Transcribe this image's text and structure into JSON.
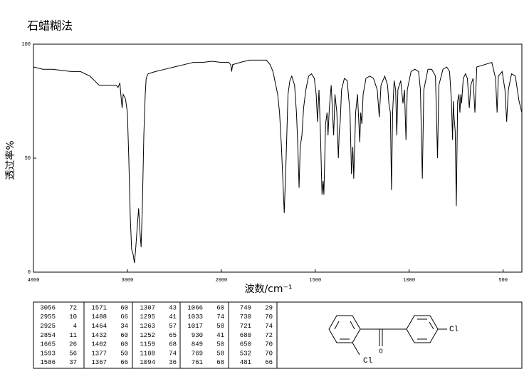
{
  "chart_data": {
    "type": "line",
    "title": "石蜡糊法",
    "xlabel": "波数/cm⁻¹",
    "ylabel": "透过率%",
    "xlim": [
      4000,
      400
    ],
    "xbreak": 2000,
    "ylim": [
      0,
      100
    ],
    "xticks": [
      4000,
      3000,
      2000,
      1500,
      1000,
      500
    ],
    "yticks": [
      0,
      50,
      100
    ],
    "x": [
      4000,
      3900,
      3800,
      3700,
      3600,
      3500,
      3400,
      3350,
      3300,
      3200,
      3120,
      3100,
      3080,
      3070,
      3056,
      3045,
      3020,
      3000,
      2985,
      2970,
      2955,
      2940,
      2925,
      2912,
      2895,
      2880,
      2870,
      2854,
      2840,
      2825,
      2810,
      2800,
      2780,
      2700,
      2600,
      2500,
      2400,
      2300,
      2200,
      2100,
      2000,
      1960,
      1950,
      1945,
      1940,
      1900,
      1850,
      1800,
      1760,
      1740,
      1725,
      1710,
      1700,
      1690,
      1680,
      1665,
      1655,
      1645,
      1635,
      1625,
      1610,
      1600,
      1593,
      1586,
      1580,
      1571,
      1562,
      1550,
      1535,
      1520,
      1505,
      1495,
      1488,
      1480,
      1472,
      1464,
      1458,
      1454,
      1445,
      1437,
      1432,
      1425,
      1415,
      1408,
      1402,
      1395,
      1385,
      1377,
      1372,
      1367,
      1360,
      1345,
      1330,
      1315,
      1307,
      1300,
      1295,
      1285,
      1275,
      1263,
      1258,
      1252,
      1245,
      1230,
      1210,
      1190,
      1170,
      1159,
      1150,
      1130,
      1115,
      1108,
      1100,
      1094,
      1088,
      1080,
      1072,
      1066,
      1060,
      1045,
      1033,
      1025,
      1017,
      1010,
      990,
      970,
      950,
      940,
      930,
      922,
      900,
      880,
      860,
      849,
      842,
      820,
      800,
      785,
      775,
      769,
      765,
      761,
      755,
      749,
      742,
      735,
      730,
      725,
      721,
      712,
      700,
      690,
      680,
      672,
      660,
      650,
      640,
      600,
      560,
      540,
      532,
      525,
      505,
      490,
      481,
      472,
      455,
      435,
      415,
      400
    ],
    "series": [
      {
        "color": "#000000",
        "values": [
          90,
          89,
          89,
          88.5,
          88,
          88,
          86,
          84,
          82,
          82,
          82,
          81,
          83,
          78,
          72,
          78,
          76,
          70,
          50,
          25,
          10,
          8,
          4,
          10,
          20,
          28,
          20,
          11,
          30,
          60,
          78,
          85,
          87,
          88,
          89,
          90,
          91,
          92,
          92,
          92.5,
          92,
          92,
          91,
          88,
          91,
          92,
          93,
          93,
          93,
          91,
          88,
          82,
          78,
          70,
          55,
          26,
          50,
          78,
          84,
          86,
          82,
          70,
          56,
          37,
          55,
          60,
          72,
          80,
          86,
          87,
          85,
          78,
          66,
          80,
          60,
          34,
          40,
          34,
          65,
          70,
          60,
          72,
          82,
          70,
          60,
          78,
          70,
          50,
          62,
          66,
          80,
          85,
          84,
          70,
          43,
          55,
          41,
          70,
          78,
          57,
          70,
          65,
          78,
          85,
          86,
          85,
          80,
          68,
          82,
          86,
          82,
          74,
          70,
          36,
          70,
          84,
          80,
          60,
          80,
          84,
          74,
          80,
          58,
          80,
          88,
          89,
          88,
          80,
          41,
          80,
          89,
          89,
          86,
          50,
          82,
          89,
          90,
          88,
          75,
          58,
          75,
          68,
          62,
          29,
          75,
          78,
          70,
          78,
          74,
          85,
          87,
          85,
          72,
          82,
          85,
          70,
          90,
          91,
          92,
          85,
          70,
          86,
          88,
          80,
          66,
          80,
          87,
          86,
          75,
          70
        ]
      }
    ]
  },
  "peak_table": {
    "columns": [
      [
        [
          3056,
          72
        ],
        [
          2955,
          10
        ],
        [
          2925,
          4
        ],
        [
          2854,
          11
        ],
        [
          1665,
          26
        ],
        [
          1593,
          56
        ],
        [
          1586,
          37
        ]
      ],
      [
        [
          1571,
          60
        ],
        [
          1488,
          66
        ],
        [
          1464,
          34
        ],
        [
          1432,
          60
        ],
        [
          1402,
          60
        ],
        [
          1377,
          50
        ],
        [
          1367,
          66
        ]
      ],
      [
        [
          1307,
          43
        ],
        [
          1295,
          41
        ],
        [
          1263,
          57
        ],
        [
          1252,
          65
        ],
        [
          1159,
          68
        ],
        [
          1108,
          74
        ],
        [
          1094,
          36
        ]
      ],
      [
        [
          1066,
          60
        ],
        [
          1033,
          74
        ],
        [
          1017,
          58
        ],
        [
          930,
          41
        ],
        [
          849,
          50
        ],
        [
          769,
          58
        ],
        [
          761,
          68
        ]
      ],
      [
        [
          749,
          29
        ],
        [
          730,
          70
        ],
        [
          721,
          74
        ],
        [
          680,
          72
        ],
        [
          650,
          70
        ],
        [
          532,
          70
        ],
        [
          481,
          66
        ]
      ]
    ]
  },
  "structure": {
    "labels": [
      "Cl",
      "O",
      "Cl"
    ]
  }
}
